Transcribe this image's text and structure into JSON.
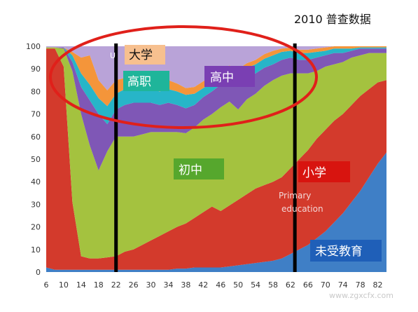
{
  "chart_data": {
    "type": "area",
    "stacked": true,
    "title": "2010 普查数据",
    "xlim": [
      6,
      84
    ],
    "ylim": [
      0,
      100
    ],
    "x_ticks": [
      6,
      10,
      14,
      18,
      22,
      26,
      30,
      34,
      38,
      42,
      46,
      50,
      54,
      58,
      62,
      66,
      70,
      74,
      78,
      82
    ],
    "y_ticks": [
      0,
      10,
      20,
      30,
      40,
      50,
      60,
      70,
      80,
      90,
      100
    ],
    "grid": false,
    "x": [
      6,
      8,
      10,
      12,
      14,
      16,
      18,
      20,
      22,
      24,
      26,
      28,
      30,
      32,
      34,
      36,
      38,
      40,
      42,
      44,
      46,
      48,
      50,
      52,
      54,
      56,
      58,
      60,
      62,
      64,
      66,
      68,
      70,
      72,
      74,
      76,
      78,
      80,
      82,
      84
    ],
    "series": [
      {
        "name": "未受教育",
        "color": "#3f7fc6",
        "values": [
          2,
          1,
          1,
          1,
          1,
          1,
          1,
          1,
          1,
          1,
          1,
          1,
          1,
          1,
          1,
          1.5,
          1.5,
          2,
          2,
          2,
          2,
          2.5,
          3,
          3.5,
          4,
          4.5,
          5,
          6,
          8,
          10,
          12,
          15,
          18,
          22,
          26,
          31,
          36,
          42,
          48,
          53
        ]
      },
      {
        "name": "小学",
        "color": "#d33a2c",
        "values": [
          97,
          98,
          90,
          30,
          6,
          5,
          5,
          5.5,
          6,
          8,
          9,
          11,
          13,
          15,
          17,
          18.5,
          20,
          22,
          24.5,
          27,
          25,
          27,
          29,
          31,
          33,
          34,
          35,
          36,
          38,
          40,
          42,
          44,
          45,
          45,
          44,
          43,
          42,
          39,
          36,
          32
        ]
      },
      {
        "name": "初中",
        "color": "#a4c23f",
        "values": [
          0.5,
          0.5,
          8,
          58,
          63,
          50,
          39,
          47,
          53,
          51,
          50,
          49,
          48,
          46,
          44,
          42,
          40,
          40,
          41,
          41,
          46,
          46,
          40,
          42,
          42,
          44,
          45,
          45,
          42,
          38,
          34,
          30,
          28,
          25,
          23,
          21,
          18,
          16,
          13,
          12
        ]
      },
      {
        "name": "高中",
        "color": "#7f57b6",
        "values": [
          0,
          0,
          0.5,
          4,
          12,
          20,
          25,
          12,
          12,
          14,
          15,
          14,
          13,
          12,
          13,
          12,
          11,
          10,
          10,
          10,
          10,
          10,
          12,
          10,
          9,
          8,
          7,
          7,
          7,
          6,
          6,
          6,
          5,
          5,
          4,
          3,
          3,
          2,
          2,
          2
        ]
      },
      {
        "name": "高职",
        "color": "#27b5c8",
        "values": [
          0,
          0,
          0,
          3,
          6,
          7,
          7,
          8,
          7,
          7,
          6,
          6,
          6,
          6,
          6,
          6,
          6,
          5,
          4,
          4,
          4,
          4,
          4,
          4,
          4,
          4,
          4,
          3.5,
          3,
          3,
          3,
          2.5,
          2,
          2,
          2,
          1,
          0.5,
          0.5,
          0.5,
          0.5
        ]
      },
      {
        "name": "大学",
        "color": "#f4953a",
        "values": [
          0,
          0,
          0,
          1.5,
          7,
          13,
          8,
          7,
          6,
          5,
          4,
          4,
          4,
          4,
          4,
          3.5,
          3,
          3,
          3,
          3,
          2.5,
          2,
          2,
          2,
          2,
          2,
          2,
          1.5,
          1.5,
          1.5,
          1.5,
          1.5,
          1.5,
          1,
          1,
          1,
          0.5,
          0.5,
          0.5,
          0.5
        ]
      }
    ],
    "vertical_lines": [
      22,
      63
    ],
    "annotations": {
      "daxue": "大学",
      "gaozhi": "高职",
      "gaozhong": "高中",
      "chuzhong": "初中",
      "xiaoxue": "小学",
      "primary_1": "Primary",
      "primary_2": "education",
      "wjy": "未受教育",
      "small_u": "U"
    },
    "watermark": "www.zgxcfx.com"
  }
}
